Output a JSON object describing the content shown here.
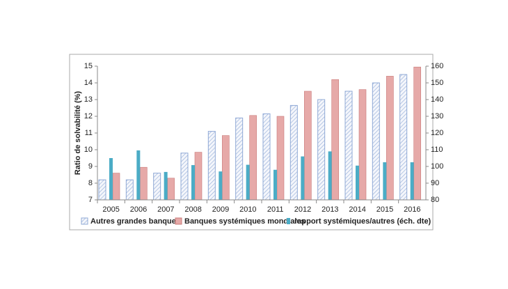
{
  "chart_data": {
    "type": "bar",
    "y_label": "Ratio de solvabilité (%)",
    "categories": [
      "2005",
      "2006",
      "2007",
      "2008",
      "2009",
      "2010",
      "2011",
      "2012",
      "2013",
      "2014",
      "2015",
      "2016"
    ],
    "series": [
      {
        "name": "Autres grandes banques",
        "color": "#8fa9d6",
        "values": [
          8.2,
          8.2,
          8.6,
          9.8,
          11.1,
          11.9,
          12.15,
          12.65,
          13.0,
          13.5,
          14.0,
          14.5
        ]
      },
      {
        "name": "Banques systémiques mondiales",
        "color": "#e6a9a8",
        "values": [
          8.6,
          8.95,
          8.3,
          9.85,
          10.85,
          12.05,
          12.0,
          13.5,
          14.2,
          13.6,
          14.4,
          14.95
        ]
      },
      {
        "name": "rapport systémiques/autres (éch. dte)",
        "color": "#4bacc6",
        "axis": "y2",
        "values": [
          105,
          109.6,
          96.7,
          100.8,
          97,
          101,
          98,
          106,
          109,
          100.5,
          102.5,
          102.5
        ]
      }
    ],
    "ylim": [
      7,
      15
    ],
    "yticks": [
      7,
      8,
      9,
      10,
      11,
      12,
      13,
      14,
      15
    ],
    "y2lim": [
      80,
      160
    ],
    "y2ticks": [
      80,
      90,
      100,
      110,
      120,
      130,
      140,
      150,
      160
    ],
    "legend": "bottom"
  }
}
